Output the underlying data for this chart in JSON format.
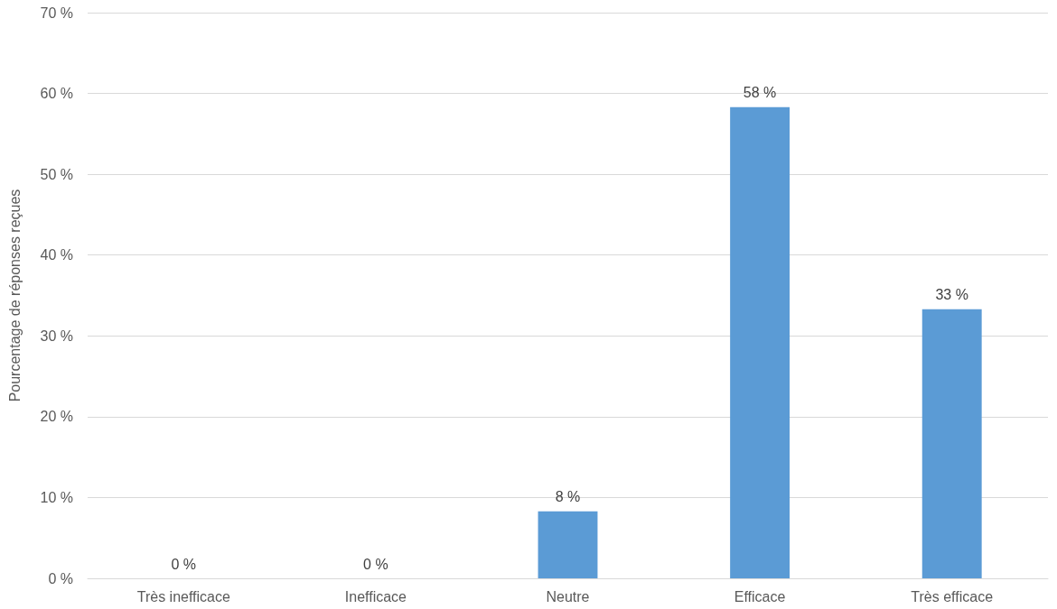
{
  "chart_data": {
    "type": "bar",
    "ylabel": "Pourcentage de réponses reçues",
    "categories": [
      "Très inefficace",
      "Inefficace",
      "Neutre",
      "Efficace",
      "Très efficace"
    ],
    "values": [
      0,
      0,
      8.3,
      58.3,
      33.3
    ],
    "value_labels": [
      "0 %",
      "0 %",
      "8 %",
      "58 %",
      "33 %"
    ],
    "color": "#5b9bd5",
    "ylim": [
      0,
      70
    ],
    "yticks": [
      {
        "value": 0,
        "label": "0 %"
      },
      {
        "value": 10,
        "label": "10 %"
      },
      {
        "value": 20,
        "label": "20 %"
      },
      {
        "value": 30,
        "label": "30 %"
      },
      {
        "value": 40,
        "label": "40 %"
      },
      {
        "value": 50,
        "label": "50 %"
      },
      {
        "value": 60,
        "label": "60 %"
      },
      {
        "value": 70,
        "label": "70 %"
      }
    ],
    "grid": "y"
  }
}
